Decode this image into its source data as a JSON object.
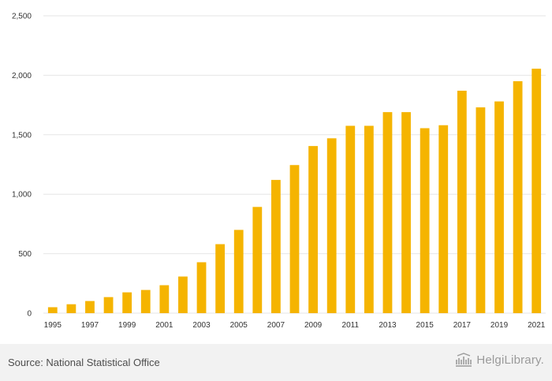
{
  "chart_data": {
    "type": "bar",
    "title": "",
    "xlabel": "",
    "ylabel": "",
    "categories": [
      "1995",
      "1996",
      "1997",
      "1998",
      "1999",
      "2000",
      "2001",
      "2002",
      "2003",
      "2004",
      "2005",
      "2006",
      "2007",
      "2008",
      "2009",
      "2010",
      "2011",
      "2012",
      "2013",
      "2014",
      "2015",
      "2016",
      "2017",
      "2018",
      "2019",
      "2020",
      "2021"
    ],
    "values": [
      50,
      75,
      102,
      135,
      175,
      195,
      235,
      308,
      428,
      580,
      700,
      893,
      1120,
      1245,
      1405,
      1470,
      1575,
      1575,
      1690,
      1690,
      1555,
      1580,
      1870,
      1730,
      1780,
      1950,
      2055
    ],
    "ylim": [
      0,
      2500
    ],
    "yticks": [
      0,
      500,
      1000,
      1500,
      2000,
      2500
    ],
    "ytick_labels": [
      "0",
      "500",
      "1,000",
      "1,500",
      "2,000",
      "2,500"
    ],
    "xtick_labels": [
      "1995",
      "1997",
      "1999",
      "2001",
      "2003",
      "2005",
      "2007",
      "2009",
      "2011",
      "2013",
      "2015",
      "2017",
      "2019",
      "2021"
    ],
    "grid": true,
    "bar_color": "#f5b400"
  },
  "footer": {
    "source": "Source: National Statistical Office",
    "logo_text": "HelgiLibrary."
  }
}
